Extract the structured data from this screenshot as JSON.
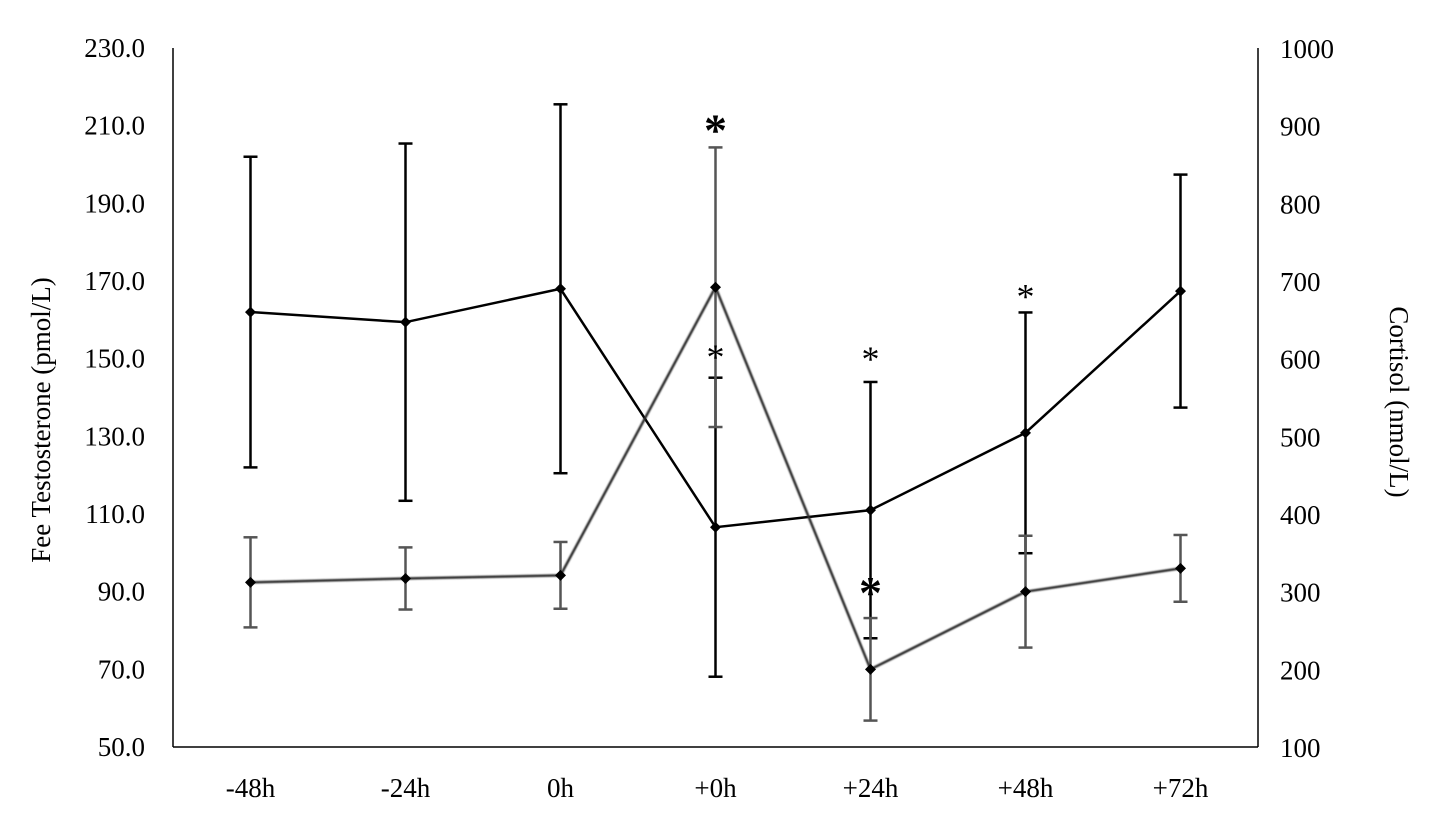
{
  "chart_data": {
    "type": "line",
    "title": "",
    "categories": [
      "-48h",
      "-24h",
      "0h",
      "+0h",
      "+24h",
      "+48h",
      "+72h"
    ],
    "ylabel": "Fee Testosterone (pmol/L)",
    "y2label": "Cortisol (nmol/L)",
    "ylim": [
      50,
      230
    ],
    "y2lim": [
      100,
      1000
    ],
    "yticks": [
      "50.0",
      "70.0",
      "90.0",
      "110.0",
      "130.0",
      "150.0",
      "170.0",
      "190.0",
      "210.0",
      "230.0"
    ],
    "y2ticks": [
      "100",
      "200",
      "300",
      "400",
      "500",
      "600",
      "700",
      "800",
      "900",
      "1000"
    ],
    "grid": false,
    "series": [
      {
        "name": "Free Testosterone",
        "axis": "left",
        "color": "#000000",
        "values": [
          162.0,
          159.4,
          168.0,
          106.6,
          111.0,
          130.9,
          167.4
        ],
        "errors": [
          40,
          46,
          47.5,
          38.5,
          33,
          31,
          30
        ]
      },
      {
        "name": "Cortisol",
        "axis": "right",
        "color": "#2a2a2a",
        "values": [
          312,
          317,
          321,
          692,
          200,
          300,
          330
        ],
        "errors": [
          58,
          40,
          43,
          180,
          66,
          72,
          43
        ]
      }
    ],
    "annotations": [
      {
        "text": "*",
        "category": "+0h",
        "value": 210.5,
        "size": "large"
      },
      {
        "text": "*",
        "category": "+0h",
        "value": 152,
        "size": "small"
      },
      {
        "text": "*",
        "category": "+24h",
        "value": 151.5,
        "size": "small"
      },
      {
        "text": "*",
        "category": "+24h",
        "value": 91.5,
        "size": "large"
      },
      {
        "text": "*",
        "category": "+48h",
        "value": 167.5,
        "size": "small"
      }
    ]
  }
}
